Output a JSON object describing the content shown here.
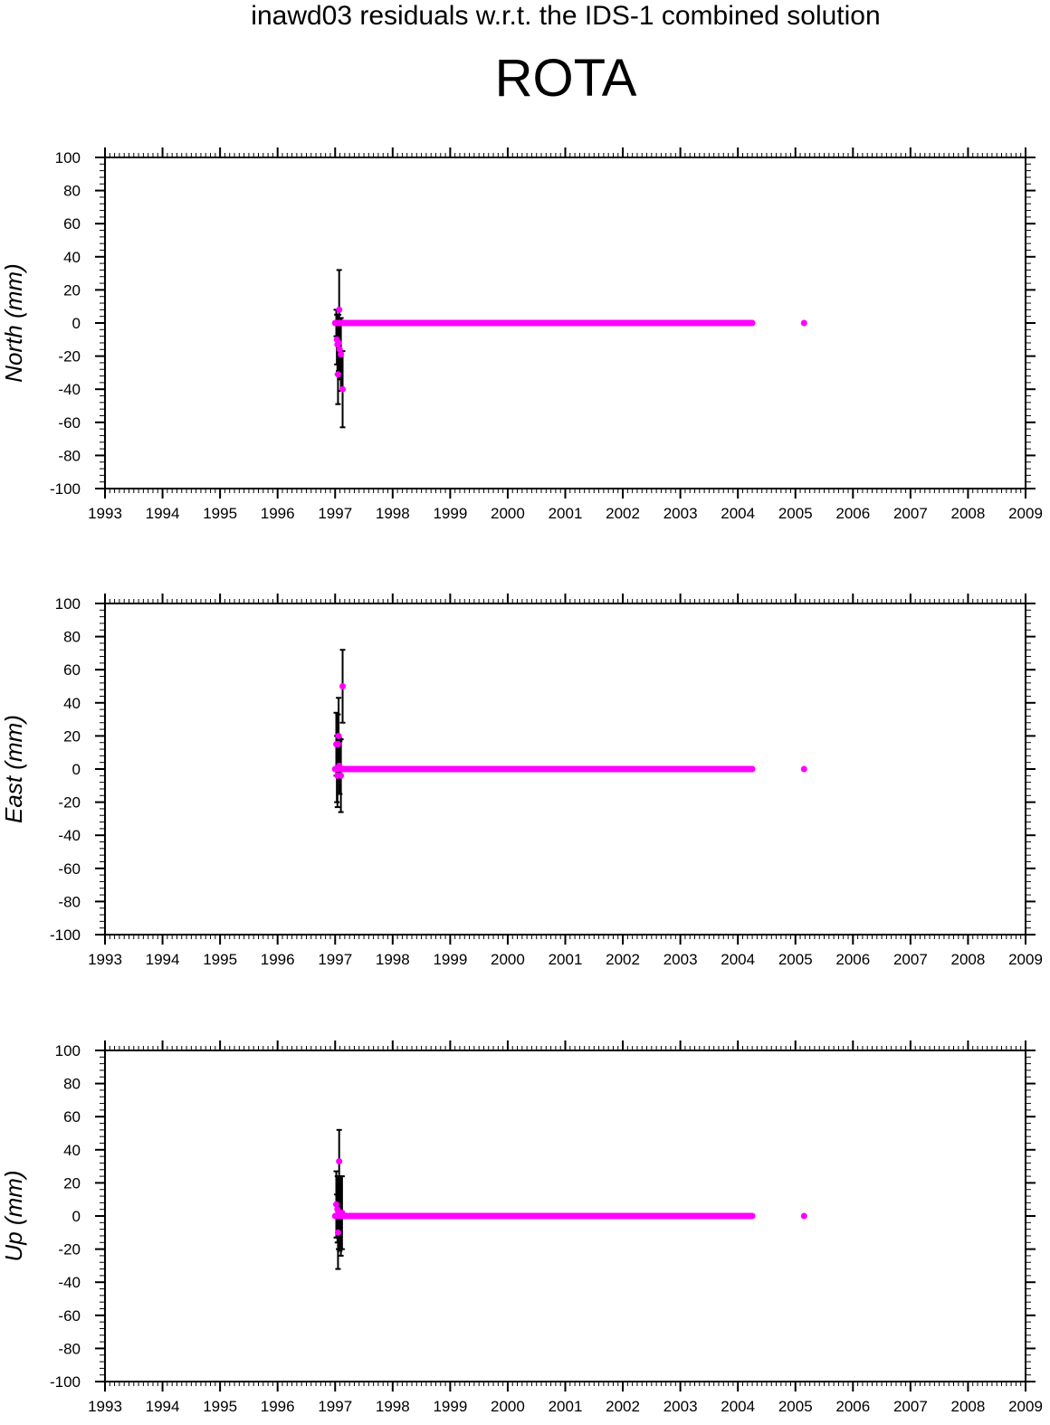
{
  "header": {
    "title": "inawd03 residuals w.r.t. the IDS-1 combined solution",
    "station": "ROTA"
  },
  "style": {
    "marker_color": "#ff00ff",
    "errorbar_color": "#000000"
  },
  "chart_data": [
    {
      "type": "scatter",
      "ylabel": "North (mm)",
      "xlim": [
        1993,
        2009
      ],
      "ylim": [
        -100,
        100
      ],
      "x_ticks": [
        "1993",
        "1994",
        "1995",
        "1996",
        "1997",
        "1998",
        "1999",
        "2000",
        "2001",
        "2002",
        "2003",
        "2004",
        "2005",
        "2006",
        "2007",
        "2008",
        "2009"
      ],
      "y_ticks": [
        "100",
        "80",
        "60",
        "40",
        "20",
        "0",
        "-20",
        "-40",
        "-60",
        "-80",
        "-100"
      ],
      "points": [
        {
          "x": 1997.02,
          "y": 0,
          "err": 8
        },
        {
          "x": 1997.03,
          "y": -10,
          "err": 15
        },
        {
          "x": 1997.04,
          "y": -13,
          "err": 18
        },
        {
          "x": 1997.05,
          "y": -31,
          "err": 18
        },
        {
          "x": 1997.06,
          "y": -12,
          "err": 17
        },
        {
          "x": 1997.07,
          "y": 8,
          "err": 24
        },
        {
          "x": 1997.08,
          "y": -16,
          "err": 18
        },
        {
          "x": 1997.1,
          "y": -19,
          "err": 22
        },
        {
          "x": 1997.13,
          "y": -40,
          "err": 23
        }
      ],
      "flat_segment": {
        "x_start": 1997.0,
        "x_end": 2004.25,
        "y": 0
      },
      "isolated_points": [
        {
          "x": 2005.15,
          "y": 0
        }
      ]
    },
    {
      "type": "scatter",
      "ylabel": "East (mm)",
      "xlim": [
        1993,
        2009
      ],
      "ylim": [
        -100,
        100
      ],
      "x_ticks": [
        "1993",
        "1994",
        "1995",
        "1996",
        "1997",
        "1998",
        "1999",
        "2000",
        "2001",
        "2002",
        "2003",
        "2004",
        "2005",
        "2006",
        "2007",
        "2008",
        "2009"
      ],
      "y_ticks": [
        "100",
        "80",
        "60",
        "40",
        "20",
        "0",
        "-20",
        "-40",
        "-60",
        "-80",
        "-100"
      ],
      "points": [
        {
          "x": 1997.02,
          "y": 15,
          "err": 19
        },
        {
          "x": 1997.03,
          "y": 0,
          "err": 20
        },
        {
          "x": 1997.04,
          "y": -4,
          "err": 19
        },
        {
          "x": 1997.05,
          "y": 15,
          "err": 18
        },
        {
          "x": 1997.06,
          "y": 20,
          "err": 23
        },
        {
          "x": 1997.07,
          "y": 2,
          "err": 17
        },
        {
          "x": 1997.08,
          "y": 1,
          "err": 16
        },
        {
          "x": 1997.1,
          "y": -4,
          "err": 22
        },
        {
          "x": 1997.13,
          "y": 50,
          "err": 22
        }
      ],
      "flat_segment": {
        "x_start": 1997.0,
        "x_end": 2004.25,
        "y": 0
      },
      "isolated_points": [
        {
          "x": 2005.15,
          "y": 0
        }
      ]
    },
    {
      "type": "scatter",
      "ylabel": "Up (mm)",
      "xlim": [
        1993,
        2009
      ],
      "ylim": [
        -100,
        100
      ],
      "x_ticks": [
        "1993",
        "1994",
        "1995",
        "1996",
        "1997",
        "1998",
        "1999",
        "2000",
        "2001",
        "2002",
        "2003",
        "2004",
        "2005",
        "2006",
        "2007",
        "2008",
        "2009"
      ],
      "y_ticks": [
        "100",
        "80",
        "60",
        "40",
        "20",
        "0",
        "-20",
        "-40",
        "-60",
        "-80",
        "-100"
      ],
      "points": [
        {
          "x": 1997.02,
          "y": 7,
          "err": 20
        },
        {
          "x": 1997.03,
          "y": 0,
          "err": 13
        },
        {
          "x": 1997.04,
          "y": 4,
          "err": 20
        },
        {
          "x": 1997.05,
          "y": -10,
          "err": 22
        },
        {
          "x": 1997.06,
          "y": 2,
          "err": 22
        },
        {
          "x": 1997.07,
          "y": 33,
          "err": 19
        },
        {
          "x": 1997.08,
          "y": 0,
          "err": 21
        },
        {
          "x": 1997.1,
          "y": 0,
          "err": 24
        },
        {
          "x": 1997.12,
          "y": 2,
          "err": 22
        }
      ],
      "flat_segment": {
        "x_start": 1997.0,
        "x_end": 2004.25,
        "y": 0
      },
      "isolated_points": [
        {
          "x": 2005.15,
          "y": 0
        }
      ]
    }
  ]
}
